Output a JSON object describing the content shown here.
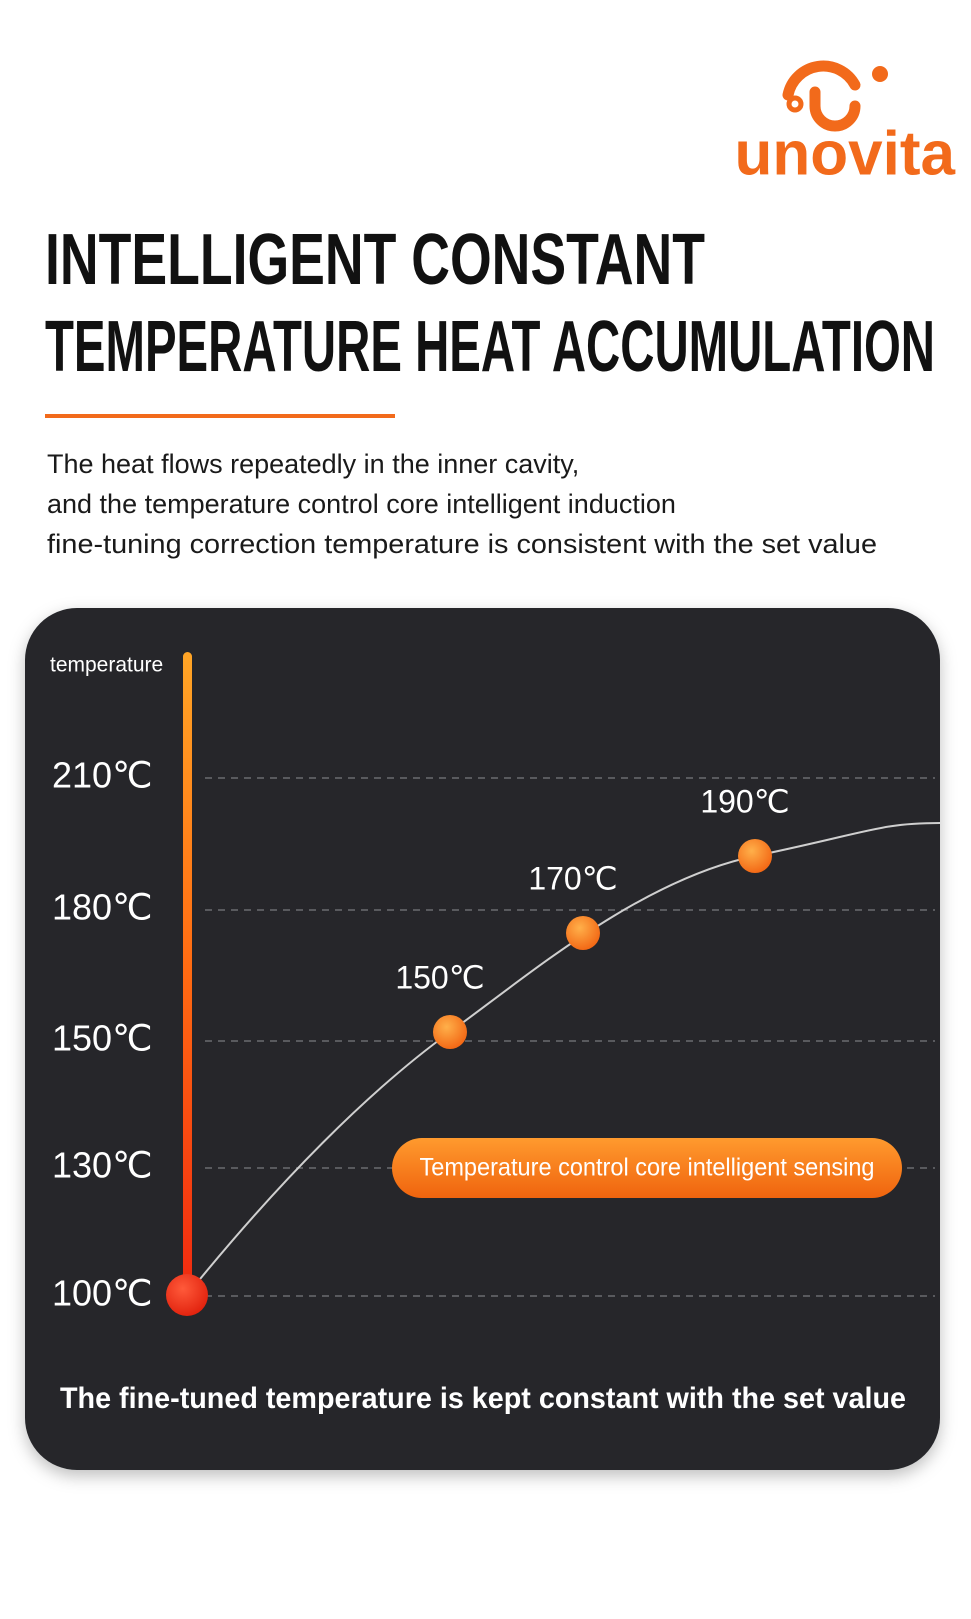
{
  "header": {
    "brand": "unovita",
    "title": [
      "INTELLIGENT CONSTANT",
      "TEMPERATURE HEAT ACCUMULATION"
    ],
    "description": [
      "The heat flows repeatedly in the inner cavity,",
      "and the temperature control core intelligent induction",
      "fine-tuning correction temperature is consistent with the set value"
    ]
  },
  "panel": {
    "axis_label": "temperature",
    "ticks": [
      "210℃",
      "180℃",
      "150℃",
      "130℃",
      "100℃"
    ],
    "points": [
      "150℃",
      "170℃",
      "190℃"
    ],
    "badge": "Temperature control core intelligent sensing",
    "caption": "The fine-tuned temperature is kept constant with the set value"
  }
}
